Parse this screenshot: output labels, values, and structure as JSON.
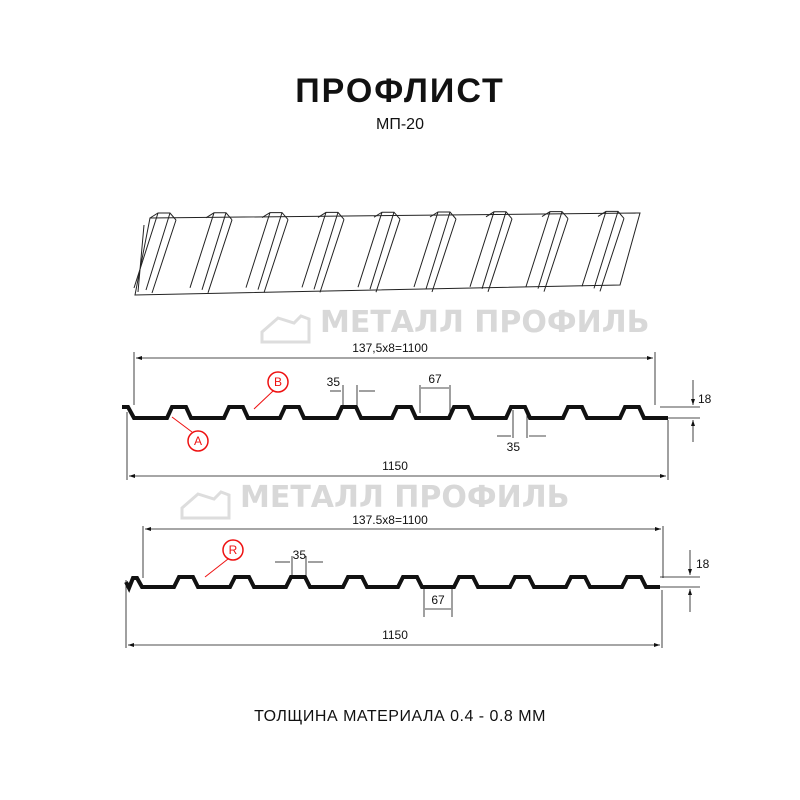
{
  "header": {
    "title": "ПРОФЛИСТ",
    "model": "МП-20"
  },
  "watermark": {
    "text": "МЕТАЛЛ ПРОФИЛЬ",
    "color": "#d8d8d8"
  },
  "profile_1": {
    "pitch_label": "137,5x8=1100",
    "total_width_label": "1150",
    "crest_width_label": "35",
    "trough_width_label": "67",
    "bottom_crest_label": "35",
    "height_label": "18",
    "callouts": [
      "B",
      "A"
    ]
  },
  "profile_2": {
    "pitch_label": "137.5x8=1100",
    "total_width_label": "1150",
    "crest_width_label": "35",
    "trough_width_label": "67",
    "height_label": "18",
    "callouts": [
      "R"
    ]
  },
  "footer": {
    "thickness": "ТОЛЩИНА МАТЕРИАЛА 0.4 - 0.8 ММ"
  },
  "colors": {
    "profile": "#111111",
    "callout": "#ee1111"
  }
}
